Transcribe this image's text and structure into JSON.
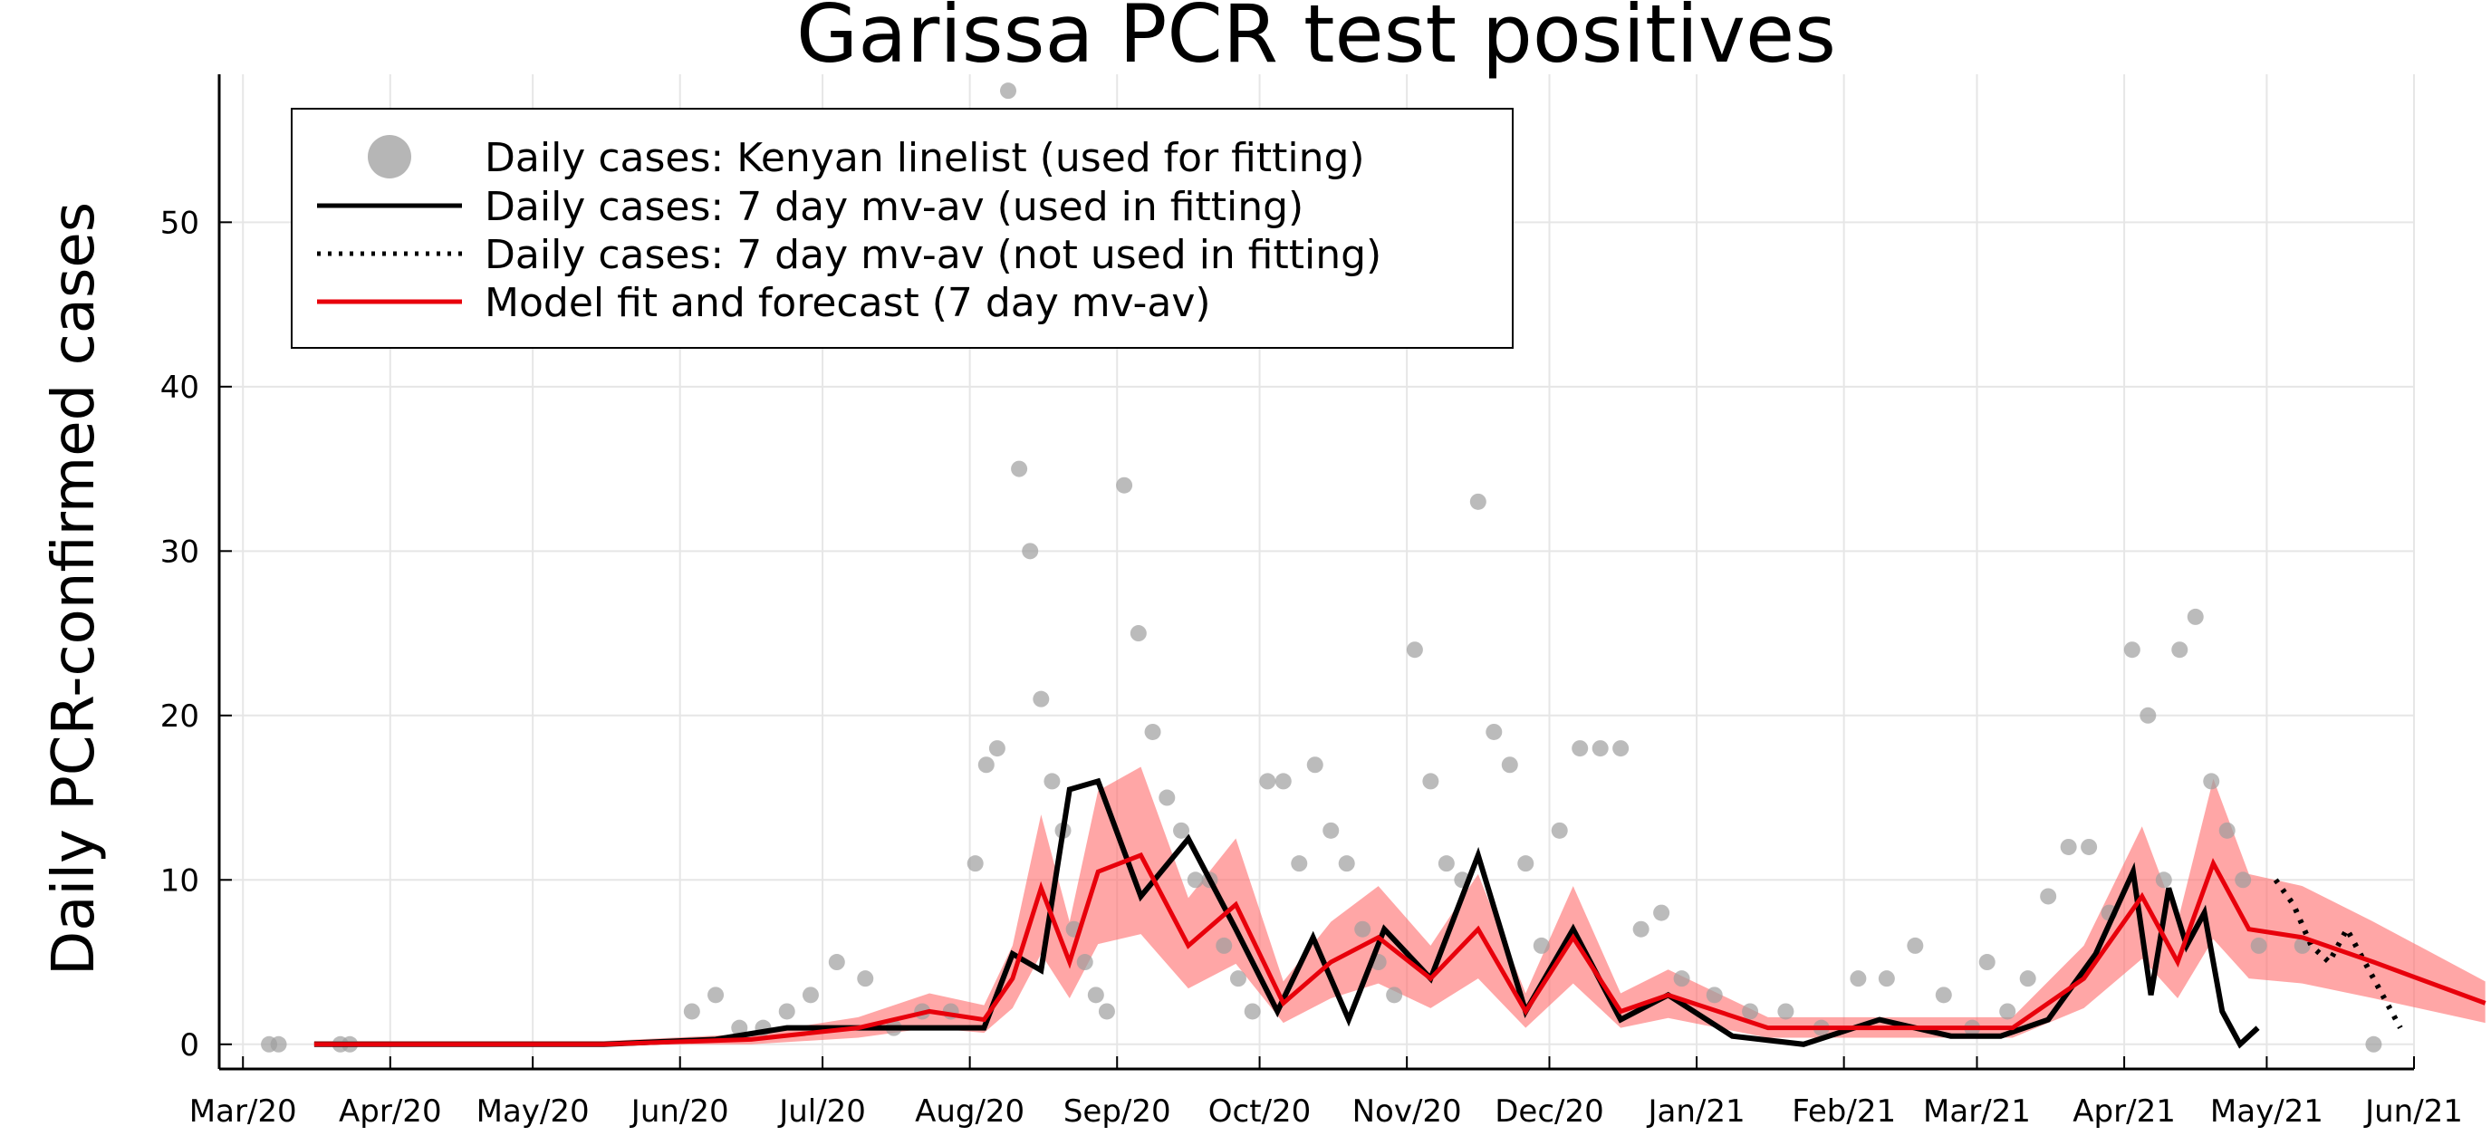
{
  "chart_data": {
    "type": "line",
    "title": "Garissa PCR test positives",
    "xlabel": "",
    "ylabel": "Daily PCR-confirmed cases",
    "x_ticks": [
      "Mar/20",
      "Apr/20",
      "May/20",
      "Jun/20",
      "Jul/20",
      "Aug/20",
      "Sep/20",
      "Oct/20",
      "Nov/20",
      "Dec/20",
      "Jan/21",
      "Feb/21",
      "Mar/21",
      "Apr/21",
      "May/21",
      "Jun/21"
    ],
    "x_tick_days": [
      0,
      31,
      61,
      92,
      122,
      153,
      184,
      214,
      245,
      275,
      306,
      337,
      365,
      396,
      426,
      457
    ],
    "y_ticks": [
      "0",
      "10",
      "20",
      "30",
      "40",
      "50"
    ],
    "ylim": [
      -1.5,
      59
    ],
    "grid": true,
    "legend_position": "top-left",
    "colors": {
      "points": "#9e9e9e",
      "observed": "#000000",
      "model": "#e8000b",
      "band": "#ff6b6b"
    },
    "series": [
      {
        "name": "Daily cases: Kenyan linelist (used for fitting)",
        "kind": "scatter",
        "points": [
          [
            "Feb/20",
            0
          ],
          [
            "Feb/20",
            0
          ],
          [
            "Mar/20",
            0
          ],
          [
            "Mar/20",
            0
          ],
          [
            "Jun/20",
            2
          ],
          [
            "Jun/20",
            3
          ],
          [
            "Jun/20",
            1
          ],
          [
            "Jun/20",
            1
          ],
          [
            "Jun/20",
            2
          ],
          [
            "Jun/20",
            3
          ],
          [
            "Jul/20",
            5
          ],
          [
            "Jul/20",
            4
          ],
          [
            "Jul/20",
            1
          ],
          [
            "Jul/20",
            2
          ],
          [
            "Jul/20",
            2
          ],
          [
            "Aug/20",
            11
          ],
          [
            "Aug/20",
            17
          ],
          [
            "Aug/20",
            18
          ],
          [
            "Aug/20",
            58
          ],
          [
            "Aug/20",
            35
          ],
          [
            "Aug/20",
            30
          ],
          [
            "Aug/20",
            21
          ],
          [
            "Aug/20",
            16
          ],
          [
            "Aug/20",
            13
          ],
          [
            "Aug/20",
            7
          ],
          [
            "Aug/20",
            5
          ],
          [
            "Aug/20",
            3
          ],
          [
            "Aug/20",
            2
          ],
          [
            "Sep/20",
            34
          ],
          [
            "Sep/20",
            25
          ],
          [
            "Sep/20",
            19
          ],
          [
            "Sep/20",
            15
          ],
          [
            "Sep/20",
            13
          ],
          [
            "Sep/20",
            10
          ],
          [
            "Sep/20",
            10
          ],
          [
            "Sep/20",
            6
          ],
          [
            "Sep/20",
            4
          ],
          [
            "Sep/20",
            2
          ],
          [
            "Oct/20",
            16
          ],
          [
            "Oct/20",
            16
          ],
          [
            "Oct/20",
            11
          ],
          [
            "Oct/20",
            17
          ],
          [
            "Oct/20",
            13
          ],
          [
            "Oct/20",
            11
          ],
          [
            "Oct/20",
            7
          ],
          [
            "Oct/20",
            5
          ],
          [
            "Oct/20",
            3
          ],
          [
            "Nov/20",
            24
          ],
          [
            "Nov/20",
            16
          ],
          [
            "Nov/20",
            11
          ],
          [
            "Nov/20",
            10
          ],
          [
            "Nov/20",
            33
          ],
          [
            "Nov/20",
            19
          ],
          [
            "Nov/20",
            17
          ],
          [
            "Nov/20",
            11
          ],
          [
            "Nov/20",
            6
          ],
          [
            "Dec/20",
            13
          ],
          [
            "Dec/20",
            18
          ],
          [
            "Dec/20",
            18
          ],
          [
            "Dec/20",
            18
          ],
          [
            "Dec/20",
            7
          ],
          [
            "Dec/20",
            8
          ],
          [
            "Dec/20",
            4
          ],
          [
            "Jan/21",
            3
          ],
          [
            "Jan/21",
            2
          ],
          [
            "Jan/21",
            2
          ],
          [
            "Jan/21",
            1
          ],
          [
            "Feb/21",
            4
          ],
          [
            "Feb/21",
            4
          ],
          [
            "Feb/21",
            6
          ],
          [
            "Feb/21",
            3
          ],
          [
            "Feb/21",
            1
          ],
          [
            "Mar/21",
            5
          ],
          [
            "Mar/21",
            2
          ],
          [
            "Mar/21",
            4
          ],
          [
            "Mar/21",
            9
          ],
          [
            "Mar/21",
            12
          ],
          [
            "Mar/21",
            12
          ],
          [
            "Mar/21",
            8
          ],
          [
            "Apr/21",
            24
          ],
          [
            "Apr/21",
            20
          ],
          [
            "Apr/21",
            10
          ],
          [
            "Apr/21",
            24
          ],
          [
            "Apr/21",
            26
          ],
          [
            "Apr/21",
            16
          ],
          [
            "Apr/21",
            13
          ],
          [
            "Apr/21",
            10
          ],
          [
            "Apr/21",
            6
          ],
          [
            "May/21",
            6
          ],
          [
            "May/21",
            0
          ]
        ]
      },
      {
        "name": "Daily cases: 7 day mv-av (used in fitting)",
        "kind": "line",
        "points": [
          [
            "Mar/20",
            0
          ],
          [
            "May/20",
            0
          ],
          [
            "Jun/20",
            0.3
          ],
          [
            "Jun/20",
            1.0
          ],
          [
            "Jul/20",
            1.0
          ],
          [
            "Aug/20",
            1.0
          ],
          [
            "Aug/20",
            5.5
          ],
          [
            "Aug/20",
            4.5
          ],
          [
            "Aug/20",
            15.5
          ],
          [
            "Aug/20",
            16.0
          ],
          [
            "Sep/20",
            9.0
          ],
          [
            "Sep/20",
            12.5
          ],
          [
            "Sep/20",
            7.0
          ],
          [
            "Oct/20",
            2.0
          ],
          [
            "Oct/20",
            6.5
          ],
          [
            "Oct/20",
            1.5
          ],
          [
            "Oct/20",
            7.0
          ],
          [
            "Nov/20",
            4.0
          ],
          [
            "Nov/20",
            11.5
          ],
          [
            "Nov/20",
            2.0
          ],
          [
            "Dec/20",
            7.0
          ],
          [
            "Dec/20",
            1.5
          ],
          [
            "Dec/20",
            3.0
          ],
          [
            "Jan/21",
            0.5
          ],
          [
            "Jan/21",
            0.0
          ],
          [
            "Feb/21",
            1.5
          ],
          [
            "Feb/21",
            0.5
          ],
          [
            "Mar/21",
            0.5
          ],
          [
            "Mar/21",
            1.5
          ],
          [
            "Mar/21",
            5.5
          ],
          [
            "Apr/21",
            10.5
          ],
          [
            "Apr/21",
            3.0
          ],
          [
            "Apr/21",
            9.5
          ],
          [
            "Apr/21",
            6.0
          ],
          [
            "Apr/21",
            8.0
          ],
          [
            "Apr/21",
            2.0
          ],
          [
            "Apr/21",
            0.0
          ],
          [
            "Apr/21",
            1.0
          ]
        ]
      },
      {
        "name": "Daily cases: 7 day mv-av (not used in fitting)",
        "kind": "dotted-line",
        "points": [
          [
            "May/21",
            10.0
          ],
          [
            "May/21",
            8.5
          ],
          [
            "May/21",
            6.0
          ],
          [
            "May/21",
            5.0
          ],
          [
            "May/21",
            7.0
          ],
          [
            "May/21",
            5.0
          ],
          [
            "May/21",
            3.0
          ],
          [
            "May/21",
            1.0
          ]
        ]
      },
      {
        "name": "Model fit and forecast (7 day mv-av)",
        "kind": "line-with-band",
        "points": [
          [
            "Mar/20",
            0.0
          ],
          [
            "May/20",
            0.0
          ],
          [
            "Jun/20",
            0.3
          ],
          [
            "Jul/20",
            1.0
          ],
          [
            "Jul/20",
            2.0
          ],
          [
            "Aug/20",
            1.5
          ],
          [
            "Aug/20",
            4.0
          ],
          [
            "Aug/20",
            9.5
          ],
          [
            "Aug/20",
            5.0
          ],
          [
            "Aug/20",
            10.5
          ],
          [
            "Sep/20",
            11.5
          ],
          [
            "Sep/20",
            6.0
          ],
          [
            "Sep/20",
            8.5
          ],
          [
            "Oct/20",
            2.5
          ],
          [
            "Oct/20",
            5.0
          ],
          [
            "Oct/20",
            6.5
          ],
          [
            "Nov/20",
            4.0
          ],
          [
            "Nov/20",
            7.0
          ],
          [
            "Nov/20",
            2.0
          ],
          [
            "Dec/20",
            6.5
          ],
          [
            "Dec/20",
            2.0
          ],
          [
            "Dec/20",
            3.0
          ],
          [
            "Jan/21",
            1.0
          ],
          [
            "Feb/21",
            1.0
          ],
          [
            "Mar/21",
            1.0
          ],
          [
            "Mar/21",
            4.0
          ],
          [
            "Apr/21",
            9.0
          ],
          [
            "Apr/21",
            5.0
          ],
          [
            "Apr/21",
            11.0
          ],
          [
            "Apr/21",
            7.0
          ],
          [
            "May/21",
            6.5
          ],
          [
            "May/21",
            5.0
          ],
          [
            "Jun/21",
            2.5
          ]
        ]
      }
    ]
  }
}
